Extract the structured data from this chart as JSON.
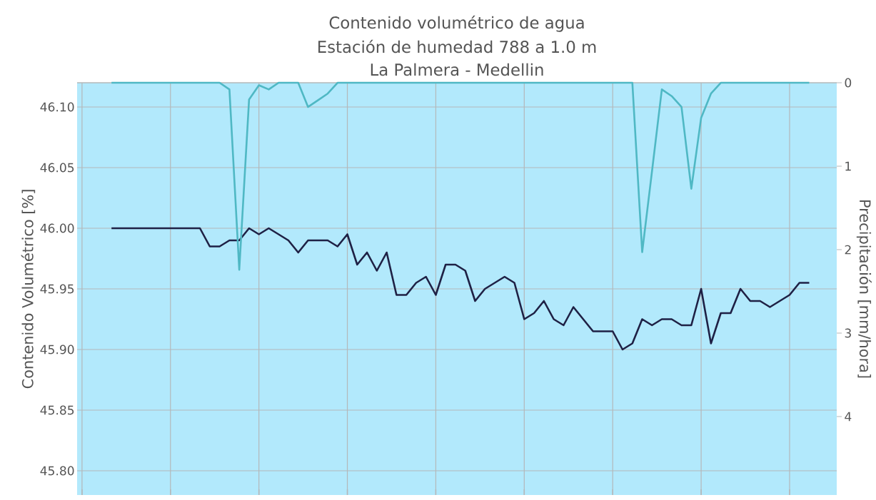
{
  "chart_data": {
    "type": "line",
    "title": "Contenido volumétrico de agua",
    "subtitle": "Estación de humedad 788 a 1.0 m",
    "annotations": [
      "La Palmera - Medellin"
    ],
    "ylabel": "Contenido Volumétrico [%]",
    "y2label": "Precipitación [mm/hora]",
    "categories": [
      null,
      null,
      null,
      null,
      null,
      null,
      null,
      null,
      null,
      null,
      null,
      null,
      null,
      null,
      null,
      null,
      null,
      null,
      null,
      null,
      null,
      null,
      null,
      null,
      null,
      null,
      null,
      null,
      null,
      null,
      null,
      null,
      null,
      null,
      null,
      null,
      null,
      null,
      null,
      null,
      null,
      null,
      null,
      null,
      null,
      null,
      null,
      null,
      null,
      null,
      null,
      null,
      null,
      null,
      null,
      null,
      null,
      null,
      null,
      null,
      null,
      null,
      null,
      null,
      null,
      null,
      null,
      null,
      null,
      null,
      null,
      null
    ],
    "series": [
      {
        "color": "#1f2145",
        "values": [
          46.0,
          46.0,
          46.0,
          46.0,
          46.0,
          46.0,
          46.0,
          46.0,
          46.0,
          46.0,
          45.985,
          45.985,
          45.99,
          45.99,
          46.0,
          45.995,
          46.0,
          45.995,
          45.99,
          45.98,
          45.99,
          45.99,
          45.99,
          45.985,
          45.995,
          45.97,
          45.98,
          45.965,
          45.98,
          45.945,
          45.945,
          45.955,
          45.96,
          45.945,
          45.97,
          45.97,
          45.965,
          45.94,
          45.95,
          45.955,
          45.96,
          45.955,
          45.925,
          45.93,
          45.94,
          45.925,
          45.92,
          45.935,
          45.925,
          45.915,
          45.915,
          45.915,
          45.9,
          45.905,
          45.925,
          45.92,
          45.925,
          45.925,
          45.92,
          45.92,
          45.95,
          45.905,
          45.93,
          45.93,
          45.95,
          45.94,
          45.94,
          45.935,
          45.94,
          45.945,
          45.955,
          45.955
        ]
      },
      {
        "color": "#4fb8c4",
        "axis": "y2",
        "values": [
          0,
          0,
          0,
          0,
          0,
          0,
          0,
          0,
          0,
          0,
          0,
          0,
          0.08,
          2.24,
          0.2,
          0.03,
          0.08,
          0,
          0,
          0,
          0.29,
          0.21,
          0.13,
          0,
          0,
          0,
          0,
          0,
          0,
          0,
          0,
          0,
          0,
          0,
          0,
          0,
          0,
          0,
          0,
          0,
          0,
          0,
          0,
          0,
          0,
          0,
          0,
          0,
          0,
          0,
          0,
          0,
          0,
          0,
          2.03,
          1.06,
          0.08,
          0.16,
          0.29,
          1.27,
          0.42,
          0.13,
          0,
          0,
          0,
          0,
          0,
          0,
          0,
          0,
          0,
          0
        ]
      }
    ],
    "ylim": [
      45.78,
      46.12
    ],
    "yticks": [
      {
        "value": 45.8,
        "label": "45.80"
      },
      {
        "value": 45.85,
        "label": "45.85"
      },
      {
        "value": 45.9,
        "label": "45.90"
      },
      {
        "value": 45.95,
        "label": "45.95"
      },
      {
        "value": 46.0,
        "label": "46.00"
      },
      {
        "value": 46.05,
        "label": "46.05"
      },
      {
        "value": 46.1,
        "label": "46.10"
      }
    ],
    "y2lim": [
      4.94,
      0
    ],
    "y2ticks": [
      0,
      1,
      2,
      3,
      4
    ],
    "grid": true,
    "marker": "none",
    "line_style": "solid"
  }
}
